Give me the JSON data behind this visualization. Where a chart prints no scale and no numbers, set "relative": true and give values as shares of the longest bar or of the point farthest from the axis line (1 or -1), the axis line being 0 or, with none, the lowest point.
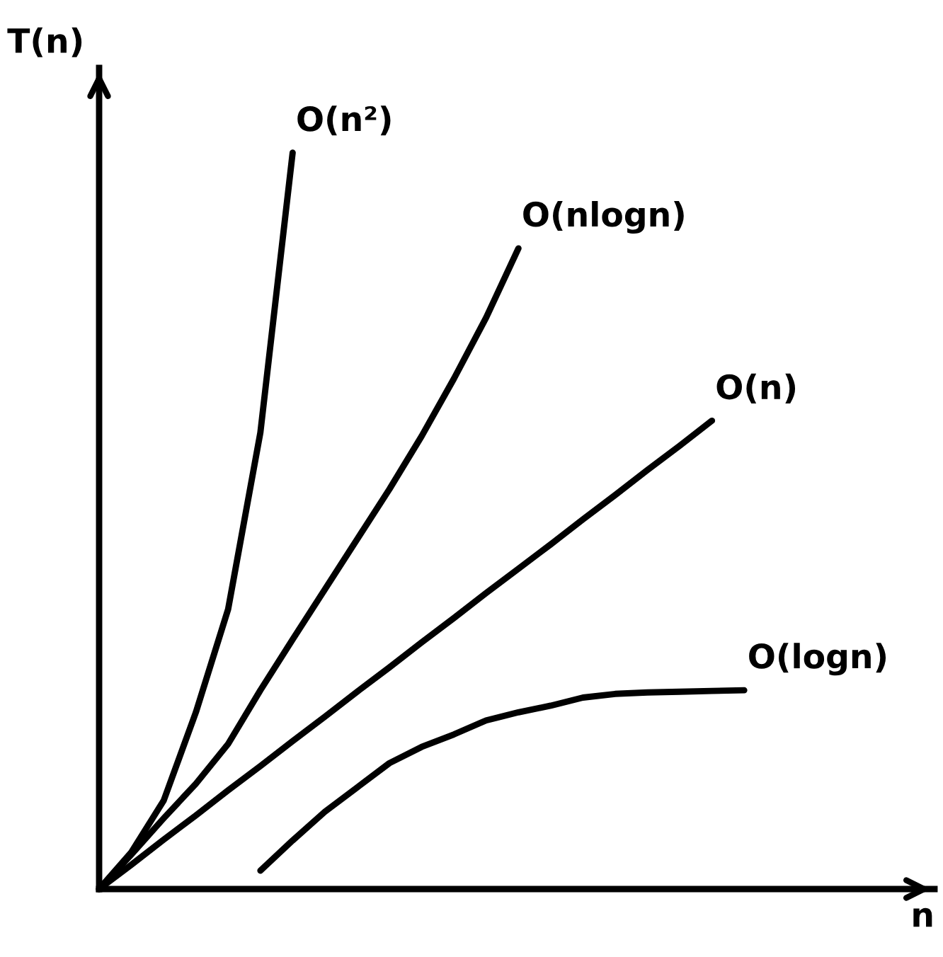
{
  "chart_data": {
    "type": "line",
    "relative": true,
    "xlabel": "n",
    "ylabel": "T(n)",
    "legend": false,
    "marker": "none",
    "line_style": "solid",
    "categories": [
      null,
      null,
      null,
      null,
      null,
      null,
      null,
      null,
      null,
      null,
      null,
      null,
      null,
      null,
      null,
      null,
      null,
      null,
      null,
      null,
      null,
      null,
      null,
      null,
      null,
      null
    ],
    "series": [
      {
        "name": "O(n²)",
        "color": "#000000",
        "values": [
          0,
          0.05,
          0.12,
          0.24,
          0.38,
          0.62,
          1.0,
          null,
          null,
          null,
          null,
          null,
          null,
          null,
          null,
          null,
          null,
          null,
          null,
          null,
          null,
          null,
          null,
          null,
          null,
          null
        ]
      },
      {
        "name": "O(nlogn)",
        "color": "#000000",
        "values": [
          0,
          0.047,
          0.096,
          0.143,
          0.197,
          0.27,
          0.339,
          0.407,
          0.475,
          0.543,
          0.615,
          0.693,
          0.776,
          0.87,
          null,
          null,
          null,
          null,
          null,
          null,
          null,
          null,
          null,
          null,
          null,
          null
        ]
      },
      {
        "name": "O(n)",
        "color": "#000000",
        "values": [
          0,
          0.033,
          0.067,
          0.1,
          0.134,
          0.167,
          0.201,
          0.234,
          0.268,
          0.301,
          0.335,
          0.368,
          0.402,
          0.435,
          0.468,
          0.502,
          0.535,
          0.569,
          0.602,
          0.636,
          null,
          null,
          null,
          null,
          null,
          null
        ]
      },
      {
        "name": "O(logn)",
        "color": "#000000",
        "values": [
          null,
          null,
          null,
          null,
          null,
          0.025,
          0.066,
          0.105,
          0.138,
          0.171,
          0.193,
          0.21,
          0.229,
          0.24,
          0.249,
          0.26,
          0.265,
          0.267,
          0.268,
          0.269,
          0.27,
          null,
          null,
          null,
          null,
          null
        ]
      }
    ]
  }
}
